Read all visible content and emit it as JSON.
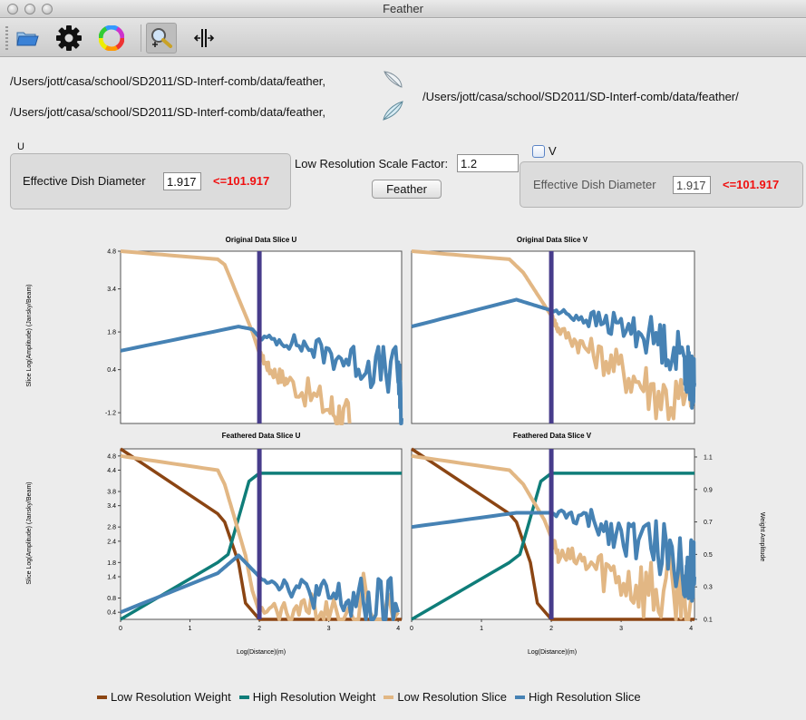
{
  "window": {
    "title": "Feather"
  },
  "toolbar": {
    "items": [
      "open-folder-icon",
      "settings-gear-icon",
      "color-wheel-icon",
      "zoom-icon",
      "cursor-split-icon"
    ]
  },
  "files": {
    "low_res_path": "/Users/jott/casa/school/SD2011/SD-Interf-comb/data/feather,",
    "high_res_path": "/Users/jott/casa/school/SD2011/SD-Interf-comb/data/feather,",
    "output_path": "/Users/jott/casa/school/SD2011/SD-Interf-comb/data/feather/"
  },
  "u_panel": {
    "title": "U",
    "dish_label": "Effective Dish Diameter",
    "dish_value": "1.917",
    "limit": "<=101.917"
  },
  "v_panel": {
    "title": "V",
    "checked": false,
    "dish_label": "Effective Dish Diameter",
    "dish_value": "1.917",
    "limit": "<=101.917"
  },
  "scale": {
    "label": "Low Resolution Scale Factor:",
    "value": "1.2"
  },
  "feather_button": "Feather",
  "chart_data": [
    {
      "type": "line",
      "title": "Original Data Slice U",
      "ylabel": "Slice Log(Amplitude) (Jansky/Beam)",
      "ylim": [
        -1.6,
        4.8
      ],
      "yticks": [
        "4.8",
        "3.4",
        "1.8",
        "0.4",
        "-1.2"
      ],
      "xlim": [
        0,
        4.05
      ],
      "cursor_x": 2.0,
      "series": [
        {
          "name": "Low Resolution Slice",
          "color": "#e2b784",
          "x": [
            0,
            1.4,
            1.5,
            1.9,
            2.0,
            2.15,
            2.4,
            3.0,
            3.3
          ],
          "y": [
            4.8,
            4.5,
            4.3,
            1.8,
            1.0,
            0.4,
            0.0,
            -1.0,
            -1.6
          ]
        },
        {
          "name": "High Resolution Slice",
          "color": "#4682b4",
          "x": [
            0,
            1.7,
            1.9,
            2.0,
            2.5,
            3.0,
            3.5,
            4.0,
            4.05
          ],
          "y": [
            1.1,
            2.0,
            1.9,
            1.6,
            1.4,
            1.0,
            0.6,
            0.3,
            -1.4
          ]
        }
      ]
    },
    {
      "type": "line",
      "title": "Original Data Slice V",
      "ylim": [
        -1.6,
        4.8
      ],
      "xlim": [
        0,
        4.05
      ],
      "cursor_x": 2.0,
      "series": [
        {
          "name": "Low Resolution Slice",
          "color": "#e2b784",
          "x": [
            0,
            1.4,
            1.6,
            1.9,
            2.0,
            2.1,
            2.5,
            3.0,
            3.5,
            4.0
          ],
          "y": [
            4.8,
            4.5,
            4.0,
            2.8,
            2.4,
            1.9,
            1.2,
            0.4,
            -0.4,
            -1.0
          ]
        },
        {
          "name": "High Resolution Slice",
          "color": "#4682b4",
          "x": [
            0,
            1.5,
            2.0,
            2.5,
            3.0,
            3.5,
            3.9,
            4.0,
            4.05
          ],
          "y": [
            2.0,
            3.0,
            2.6,
            2.3,
            2.0,
            1.6,
            0.8,
            0.0,
            -0.1
          ]
        }
      ]
    },
    {
      "type": "line",
      "title": "Feathered Data Slice U",
      "xlabel": "Log(Distance)(m)",
      "ylabel": "Slice Log(Amplitude) (Jansky/Beam)",
      "ylim": [
        0.2,
        5.0
      ],
      "yticks": [
        "4.8",
        "4.4",
        "3.8",
        "3.4",
        "2.8",
        "2.4",
        "1.8",
        "1.4",
        "0.8",
        "0.4"
      ],
      "xticks": [
        "0",
        "1",
        "2",
        "3",
        "4"
      ],
      "xlim": [
        0,
        4.05
      ],
      "cursor_x": 2.0,
      "series": [
        {
          "name": "Low Resolution Weight",
          "color": "#8b4513",
          "axis": "right",
          "x": [
            0,
            1.4,
            1.5,
            1.7,
            1.8,
            2.0,
            2.5,
            3.0,
            4.05
          ],
          "y": [
            1.15,
            0.75,
            0.7,
            0.45,
            0.2,
            0.1,
            0.1,
            0.1,
            0.1
          ]
        },
        {
          "name": "High Resolution Weight",
          "color": "#0f7d79",
          "axis": "right",
          "x": [
            0,
            1.4,
            1.55,
            1.75,
            1.85,
            2.0,
            2.5,
            3.0,
            4.05
          ],
          "y": [
            0.1,
            0.45,
            0.5,
            0.8,
            0.95,
            1.0,
            1.0,
            1.0,
            1.0
          ]
        },
        {
          "name": "Low Resolution Slice",
          "color": "#e2b784",
          "x": [
            0,
            1.4,
            1.5,
            1.8,
            1.9,
            2.0,
            2.5,
            3.0,
            4.0
          ],
          "y": [
            4.8,
            4.4,
            4.0,
            2.0,
            1.0,
            0.4,
            0.4,
            0.4,
            0.4
          ]
        },
        {
          "name": "High Resolution Slice",
          "color": "#4682b4",
          "x": [
            0,
            1.4,
            1.7,
            1.9,
            2.0,
            2.5,
            3.0,
            3.5,
            4.0
          ],
          "y": [
            0.4,
            1.5,
            2.0,
            1.6,
            1.4,
            1.1,
            0.8,
            0.6,
            0.4
          ]
        }
      ]
    },
    {
      "type": "line",
      "title": "Feathered Data Slice V",
      "xlabel": "Log(Distance)(m)",
      "ylabel": "Weight Amplitude",
      "ylim2": [
        0.1,
        1.15
      ],
      "yticks2": [
        "1.1",
        "0.9",
        "0.7",
        "0.5",
        "0.3",
        "0.1"
      ],
      "xticks": [
        "0",
        "1",
        "2",
        "3",
        "4"
      ],
      "xlim": [
        0,
        4.05
      ],
      "cursor_x": 2.0,
      "series": [
        {
          "name": "Low Resolution Weight",
          "color": "#8b4513",
          "axis": "right",
          "x": [
            0,
            1.4,
            1.5,
            1.7,
            1.8,
            2.0,
            2.5,
            3.0,
            4.05
          ],
          "y": [
            1.15,
            0.75,
            0.7,
            0.45,
            0.2,
            0.1,
            0.1,
            0.1,
            0.1
          ]
        },
        {
          "name": "High Resolution Weight",
          "color": "#0f7d79",
          "axis": "right",
          "x": [
            0,
            1.4,
            1.55,
            1.75,
            1.85,
            2.0,
            2.5,
            3.0,
            4.05
          ],
          "y": [
            0.1,
            0.45,
            0.5,
            0.8,
            0.95,
            1.0,
            1.0,
            1.0,
            1.0
          ]
        },
        {
          "name": "Low Resolution Slice",
          "color": "#e2b784",
          "x": [
            0,
            1.4,
            1.6,
            1.9,
            2.0,
            2.1,
            2.5,
            3.0,
            3.5,
            4.0
          ],
          "y": [
            4.8,
            4.4,
            4.0,
            3.0,
            2.5,
            2.0,
            1.8,
            1.4,
            1.0,
            0.8
          ]
        },
        {
          "name": "High Resolution Slice",
          "color": "#4682b4",
          "x": [
            0,
            1.5,
            2.0,
            2.5,
            3.0,
            3.5,
            3.9,
            4.0,
            4.05
          ],
          "y": [
            2.8,
            3.2,
            3.2,
            3.0,
            2.6,
            2.3,
            1.8,
            1.5,
            1.4
          ]
        }
      ]
    }
  ],
  "legend": [
    {
      "label": "Low Resolution Weight",
      "color": "#8b4513"
    },
    {
      "label": "High Resolution Weight",
      "color": "#0f7d79"
    },
    {
      "label": "Low Resolution Slice",
      "color": "#e2b784"
    },
    {
      "label": "High Resolution Slice",
      "color": "#4682b4"
    }
  ]
}
